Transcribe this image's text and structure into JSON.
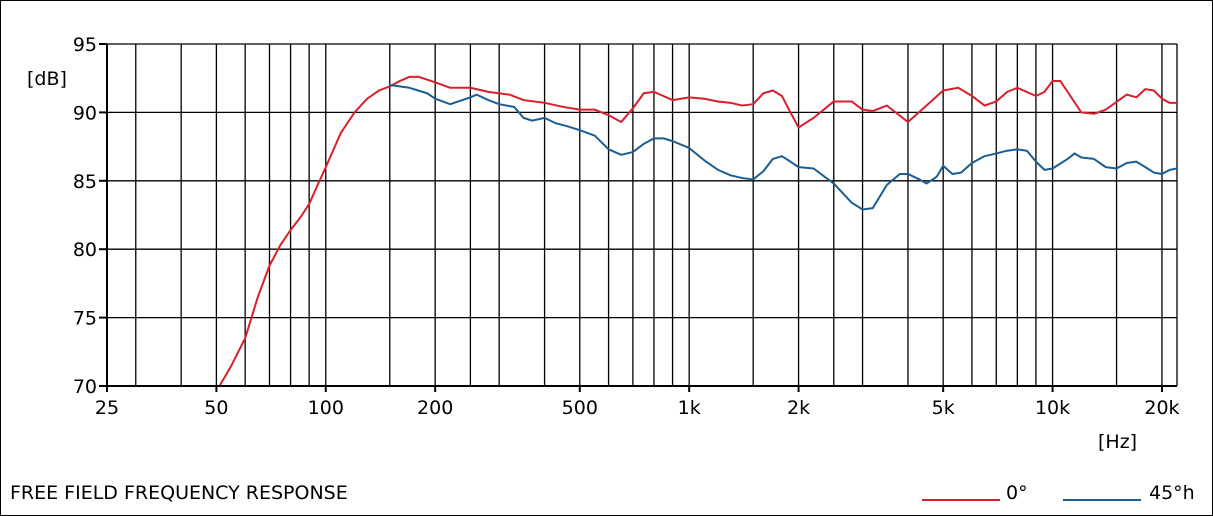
{
  "chart_data": {
    "type": "line",
    "title": "FREE FIELD FREQUENCY RESPONSE",
    "xlabel": "[Hz]",
    "ylabel": "[dB]",
    "xscale": "log",
    "xlim": [
      25,
      22000
    ],
    "ylim": [
      70,
      95
    ],
    "grid": true,
    "legend_position": "bottom-right",
    "x_tick_labels": [
      {
        "value": 25,
        "label": "25"
      },
      {
        "value": 50,
        "label": "50"
      },
      {
        "value": 100,
        "label": "100"
      },
      {
        "value": 200,
        "label": "200"
      },
      {
        "value": 500,
        "label": "500"
      },
      {
        "value": 1000,
        "label": "1k"
      },
      {
        "value": 2000,
        "label": "2k"
      },
      {
        "value": 5000,
        "label": "5k"
      },
      {
        "value": 10000,
        "label": "10k"
      },
      {
        "value": 20000,
        "label": "20k"
      }
    ],
    "x_gridlines": [
      25,
      30,
      40,
      50,
      60,
      70,
      80,
      90,
      100,
      150,
      200,
      250,
      300,
      400,
      500,
      600,
      700,
      800,
      900,
      1000,
      1500,
      2000,
      2500,
      3000,
      4000,
      5000,
      6000,
      7000,
      8000,
      9000,
      10000,
      15000,
      20000,
      22000
    ],
    "y_ticks": [
      70,
      75,
      80,
      85,
      90,
      95
    ],
    "series": [
      {
        "name": "0°",
        "color": "#d8202a",
        "points": [
          [
            51,
            70.0
          ],
          [
            55,
            71.5
          ],
          [
            60,
            73.5
          ],
          [
            65,
            76.5
          ],
          [
            70,
            78.8
          ],
          [
            75,
            80.3
          ],
          [
            80,
            81.4
          ],
          [
            85,
            82.3
          ],
          [
            90,
            83.3
          ],
          [
            95,
            84.7
          ],
          [
            100,
            86.0
          ],
          [
            110,
            88.5
          ],
          [
            120,
            90.0
          ],
          [
            130,
            91.0
          ],
          [
            140,
            91.6
          ],
          [
            150,
            91.9
          ],
          [
            160,
            92.3
          ],
          [
            170,
            92.6
          ],
          [
            180,
            92.6
          ],
          [
            200,
            92.2
          ],
          [
            220,
            91.8
          ],
          [
            250,
            91.8
          ],
          [
            280,
            91.5
          ],
          [
            320,
            91.3
          ],
          [
            350,
            90.9
          ],
          [
            400,
            90.7
          ],
          [
            450,
            90.4
          ],
          [
            500,
            90.2
          ],
          [
            550,
            90.2
          ],
          [
            600,
            89.8
          ],
          [
            650,
            89.3
          ],
          [
            700,
            90.3
          ],
          [
            750,
            91.4
          ],
          [
            800,
            91.5
          ],
          [
            900,
            90.9
          ],
          [
            1000,
            91.1
          ],
          [
            1100,
            91.0
          ],
          [
            1200,
            90.8
          ],
          [
            1300,
            90.7
          ],
          [
            1400,
            90.5
          ],
          [
            1500,
            90.6
          ],
          [
            1600,
            91.4
          ],
          [
            1700,
            91.6
          ],
          [
            1800,
            91.2
          ],
          [
            1900,
            90.0
          ],
          [
            2000,
            88.9
          ],
          [
            2200,
            89.6
          ],
          [
            2500,
            90.8
          ],
          [
            2800,
            90.8
          ],
          [
            3000,
            90.2
          ],
          [
            3200,
            90.1
          ],
          [
            3500,
            90.5
          ],
          [
            4000,
            89.3
          ],
          [
            4500,
            90.5
          ],
          [
            5000,
            91.6
          ],
          [
            5500,
            91.8
          ],
          [
            6000,
            91.2
          ],
          [
            6500,
            90.5
          ],
          [
            7000,
            90.8
          ],
          [
            7500,
            91.5
          ],
          [
            8000,
            91.8
          ],
          [
            9000,
            91.2
          ],
          [
            9500,
            91.5
          ],
          [
            10000,
            92.3
          ],
          [
            10500,
            92.3
          ],
          [
            11000,
            91.5
          ],
          [
            12000,
            90.0
          ],
          [
            13000,
            89.9
          ],
          [
            14000,
            90.2
          ],
          [
            16000,
            91.3
          ],
          [
            17000,
            91.1
          ],
          [
            18000,
            91.7
          ],
          [
            19000,
            91.6
          ],
          [
            20000,
            91.0
          ],
          [
            21000,
            90.7
          ],
          [
            22000,
            90.7
          ]
        ]
      },
      {
        "name": "45°h",
        "color": "#1b5d94",
        "points": [
          [
            150,
            92.0
          ],
          [
            170,
            91.8
          ],
          [
            190,
            91.4
          ],
          [
            200,
            91.0
          ],
          [
            220,
            90.6
          ],
          [
            250,
            91.1
          ],
          [
            260,
            91.3
          ],
          [
            280,
            90.9
          ],
          [
            300,
            90.6
          ],
          [
            330,
            90.4
          ],
          [
            350,
            89.6
          ],
          [
            370,
            89.4
          ],
          [
            400,
            89.6
          ],
          [
            430,
            89.2
          ],
          [
            460,
            89.0
          ],
          [
            500,
            88.7
          ],
          [
            550,
            88.3
          ],
          [
            600,
            87.3
          ],
          [
            650,
            86.9
          ],
          [
            700,
            87.1
          ],
          [
            750,
            87.7
          ],
          [
            800,
            88.1
          ],
          [
            850,
            88.1
          ],
          [
            900,
            87.9
          ],
          [
            1000,
            87.4
          ],
          [
            1100,
            86.5
          ],
          [
            1200,
            85.8
          ],
          [
            1300,
            85.4
          ],
          [
            1400,
            85.2
          ],
          [
            1500,
            85.1
          ],
          [
            1600,
            85.7
          ],
          [
            1700,
            86.6
          ],
          [
            1800,
            86.8
          ],
          [
            1900,
            86.4
          ],
          [
            2000,
            86.0
          ],
          [
            2200,
            85.9
          ],
          [
            2500,
            84.8
          ],
          [
            2800,
            83.4
          ],
          [
            3000,
            82.9
          ],
          [
            3200,
            83.0
          ],
          [
            3500,
            84.7
          ],
          [
            3800,
            85.5
          ],
          [
            4000,
            85.5
          ],
          [
            4300,
            85.1
          ],
          [
            4500,
            84.8
          ],
          [
            4800,
            85.3
          ],
          [
            5000,
            86.1
          ],
          [
            5300,
            85.5
          ],
          [
            5600,
            85.6
          ],
          [
            6000,
            86.3
          ],
          [
            6500,
            86.8
          ],
          [
            7000,
            87.0
          ],
          [
            7500,
            87.2
          ],
          [
            8000,
            87.3
          ],
          [
            8500,
            87.2
          ],
          [
            9000,
            86.4
          ],
          [
            9500,
            85.8
          ],
          [
            10000,
            85.9
          ],
          [
            11000,
            86.6
          ],
          [
            11500,
            87.0
          ],
          [
            12000,
            86.7
          ],
          [
            13000,
            86.6
          ],
          [
            14000,
            86.0
          ],
          [
            15000,
            85.9
          ],
          [
            16000,
            86.3
          ],
          [
            17000,
            86.4
          ],
          [
            18000,
            86.0
          ],
          [
            19000,
            85.6
          ],
          [
            20000,
            85.5
          ],
          [
            21000,
            85.8
          ],
          [
            22000,
            85.9
          ]
        ]
      }
    ]
  }
}
